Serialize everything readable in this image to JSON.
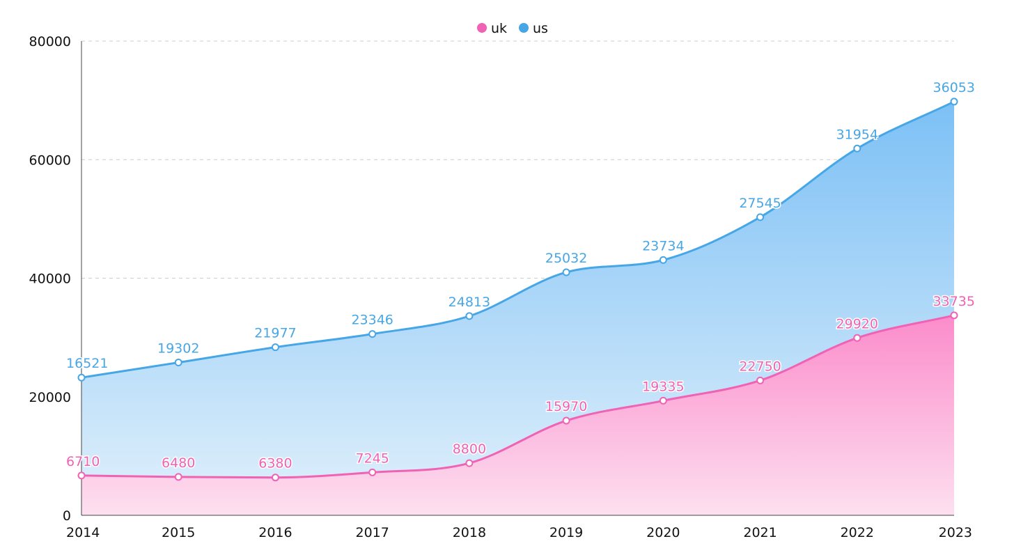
{
  "chart_data": {
    "type": "area",
    "stacked": true,
    "title": "",
    "xlabel": "",
    "ylabel": "",
    "x": [
      "2014",
      "2015",
      "2016",
      "2017",
      "2018",
      "2019",
      "2020",
      "2021",
      "2022",
      "2023"
    ],
    "ylim": [
      0,
      80000
    ],
    "yticks": [
      0,
      20000,
      40000,
      60000,
      80000
    ],
    "grid": "horizontal-dashed",
    "legend_position": "top-center",
    "series": [
      {
        "name": "uk",
        "color": "#f062b4",
        "fill_top": "#fb8ccb",
        "fill_bottom": "#fde0f0",
        "values": [
          6710,
          6480,
          6380,
          7245,
          8800,
          15970,
          19335,
          22750,
          29920,
          33735
        ]
      },
      {
        "name": "us",
        "color": "#47a6e6",
        "fill_top": "#7cc0f5",
        "fill_bottom": "#d8ecfb",
        "values": [
          16521,
          19302,
          21977,
          23346,
          24813,
          25032,
          23734,
          27545,
          31954,
          36053
        ]
      }
    ]
  }
}
